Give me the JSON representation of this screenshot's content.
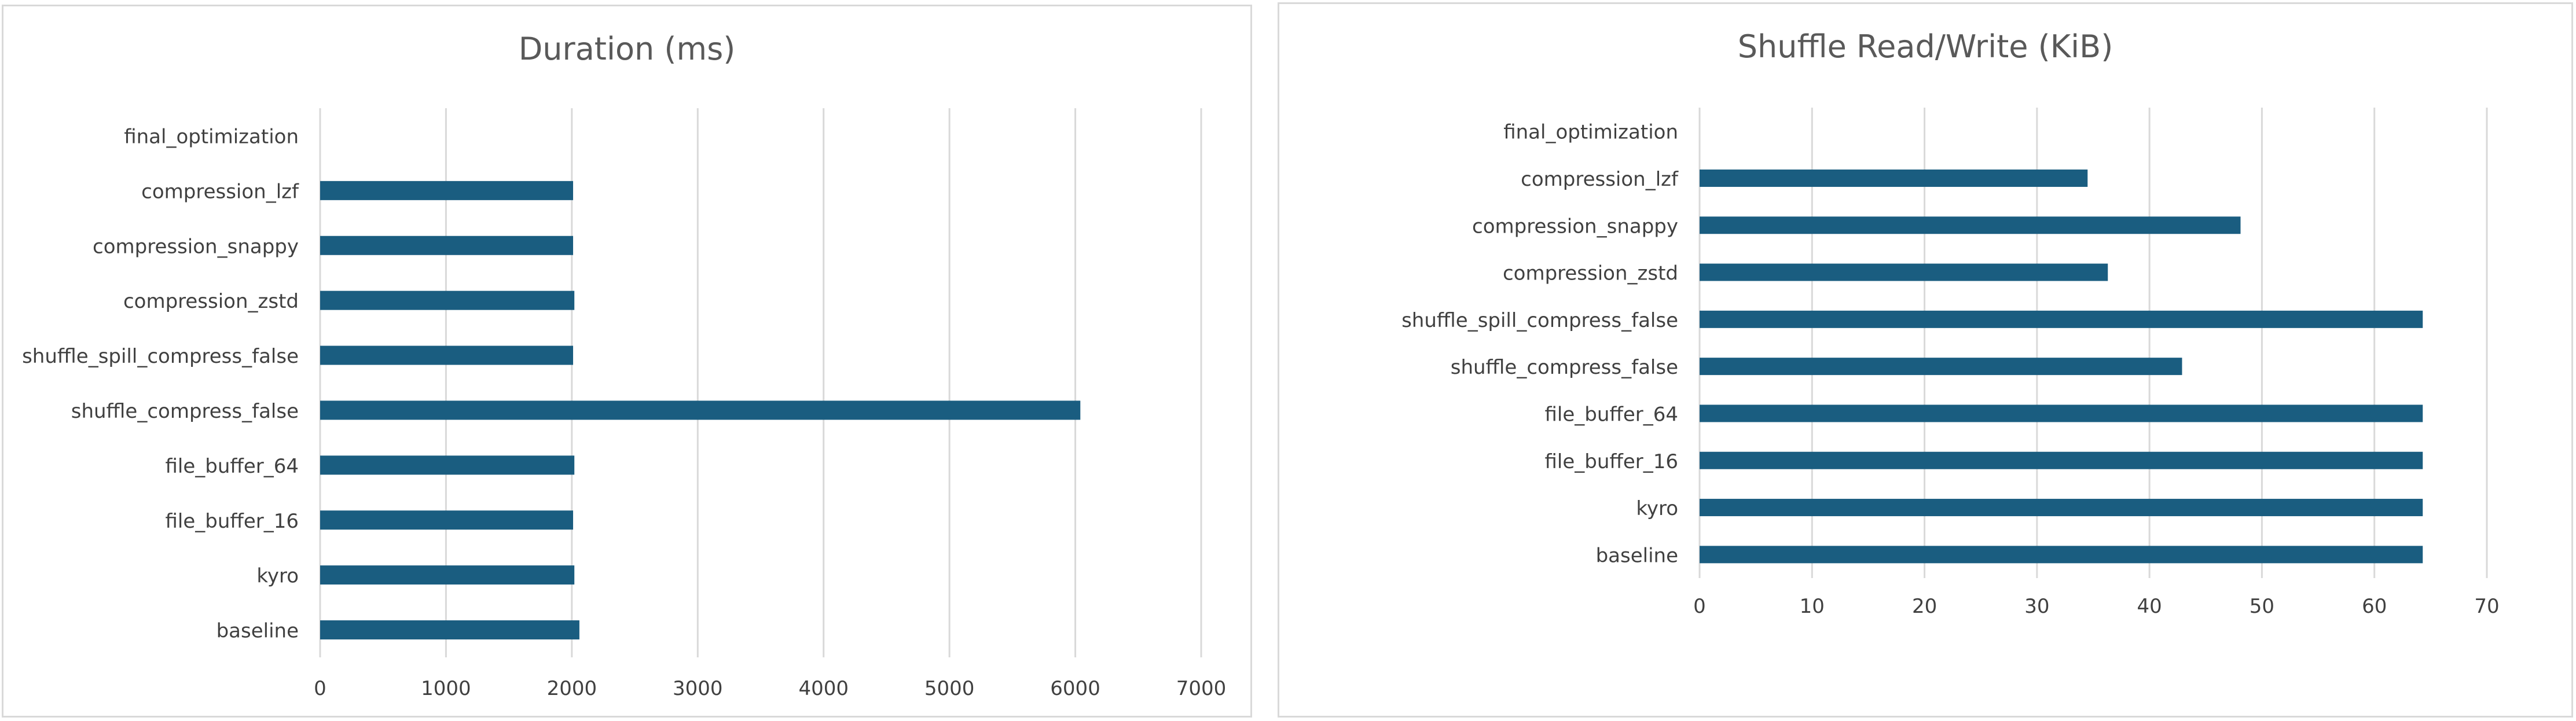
{
  "colors": {
    "bar": "#1a5d80",
    "grid": "#d9d9d9",
    "text": "#404040",
    "title": "#595959"
  },
  "chart_data": [
    {
      "type": "bar",
      "orientation": "horizontal",
      "title": "Duration (ms)",
      "xlabel": "",
      "ylabel": "",
      "xlim": [
        0,
        7000
      ],
      "x_ticks": [
        0,
        1000,
        2000,
        3000,
        4000,
        5000,
        6000,
        7000
      ],
      "grid": true,
      "legend": "none",
      "categories": [
        "baseline",
        "kyro",
        "file_buffer_16",
        "file_buffer_64",
        "shuffle_compress_false",
        "shuffle_spill_compress_false",
        "compression_zstd",
        "compression_snappy",
        "compression_lzf",
        "final_optimization"
      ],
      "values": [
        2060,
        2020,
        2010,
        2020,
        6040,
        2010,
        2020,
        2010,
        2010,
        0
      ]
    },
    {
      "type": "bar",
      "orientation": "horizontal",
      "title": "Shuffle Read/Write (KiB)",
      "xlabel": "",
      "ylabel": "",
      "xlim": [
        0,
        70
      ],
      "x_ticks": [
        0,
        10,
        20,
        30,
        40,
        50,
        60,
        70
      ],
      "grid": true,
      "legend": "none",
      "categories": [
        "baseline",
        "kyro",
        "file_buffer_16",
        "file_buffer_64",
        "shuffle_compress_false",
        "shuffle_spill_compress_false",
        "compression_zstd",
        "compression_snappy",
        "compression_lzf",
        "final_optimization"
      ],
      "values": [
        64.3,
        64.3,
        64.3,
        64.3,
        42.9,
        64.3,
        36.3,
        48.1,
        34.5,
        0
      ]
    }
  ]
}
